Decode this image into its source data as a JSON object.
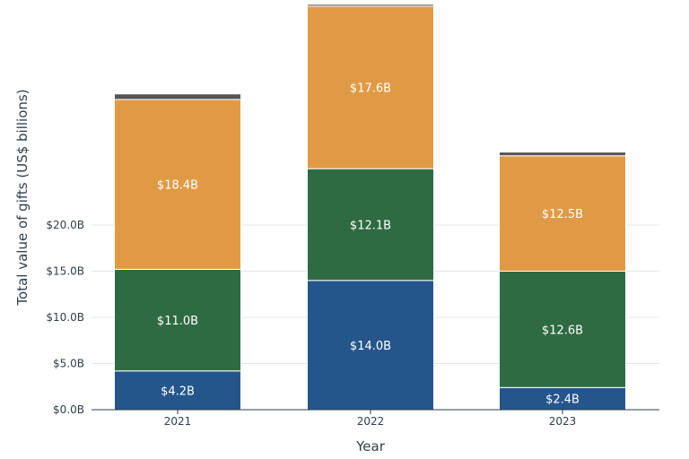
{
  "chart_data": {
    "type": "bar",
    "stacked": true,
    "categories": [
      "2021",
      "2022",
      "2023"
    ],
    "series": [
      {
        "values": [
          4.2,
          14.0,
          2.4
        ],
        "labels": [
          "$4.2B",
          "$14.0B",
          "$2.4B"
        ],
        "color": "#24568c"
      },
      {
        "values": [
          11.0,
          12.1,
          12.6
        ],
        "labels": [
          "$11.0B",
          "$12.1B",
          "$12.6B"
        ],
        "color": "#2e6b42"
      },
      {
        "values": [
          18.4,
          17.6,
          12.5
        ],
        "labels": [
          "$18.4B",
          "$17.6B",
          "$12.5B"
        ],
        "color": "#e09a45"
      },
      {
        "values": [
          0.6,
          0.2,
          0.4
        ],
        "labels": [
          "",
          "",
          ""
        ],
        "color": "#555555"
      }
    ],
    "yticks": [
      0,
      5,
      10,
      15,
      20
    ],
    "ytick_labels": [
      "$0.0B",
      "$5.0B",
      "$10.0B",
      "$15.0B",
      "$20.0B"
    ],
    "ylim": [
      0,
      44
    ],
    "xlabel": "Year",
    "ylabel": "Total value of gifts (US$ billions)",
    "grid": true,
    "legend": "none"
  }
}
